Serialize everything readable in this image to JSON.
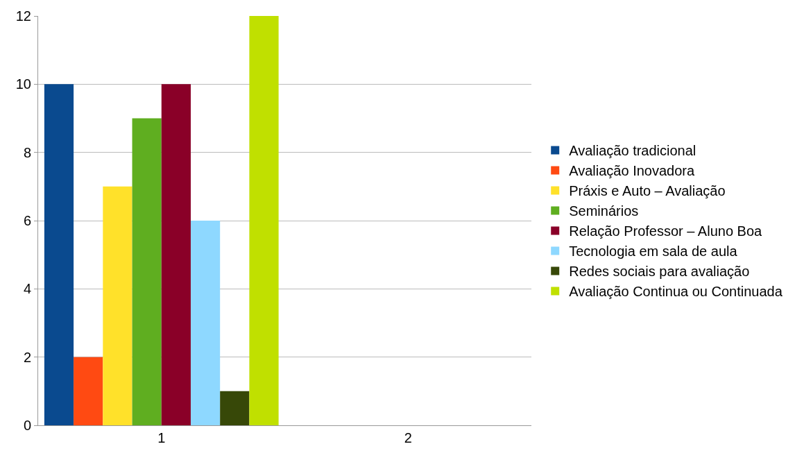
{
  "chart_data": {
    "type": "bar",
    "categories": [
      "1",
      "2"
    ],
    "series": [
      {
        "name": "Avaliação tradicional",
        "color": "#0a4a8f",
        "values": [
          10,
          null
        ]
      },
      {
        "name": "Avaliação Inovadora",
        "color": "#ff4a12",
        "values": [
          2,
          null
        ]
      },
      {
        "name": "Práxis e Auto – Avaliação",
        "color": "#ffe12a",
        "values": [
          7,
          null
        ]
      },
      {
        "name": "Seminários",
        "color": "#5fae20",
        "values": [
          9,
          null
        ]
      },
      {
        "name": "Relação Professor – Aluno Boa",
        "color": "#8a0028",
        "values": [
          10,
          null
        ]
      },
      {
        "name": "Tecnologia em sala de aula",
        "color": "#8ed8ff",
        "values": [
          6,
          null
        ]
      },
      {
        "name": "Redes sociais para avaliação",
        "color": "#374808",
        "values": [
          1,
          null
        ]
      },
      {
        "name": "Avaliação Continua ou Continuada",
        "color": "#c0e000",
        "values": [
          12,
          null
        ]
      }
    ],
    "ylim": [
      0,
      12
    ],
    "yticks": [
      0,
      2,
      4,
      6,
      8,
      10,
      12
    ],
    "grid": "y",
    "legend": "right"
  }
}
